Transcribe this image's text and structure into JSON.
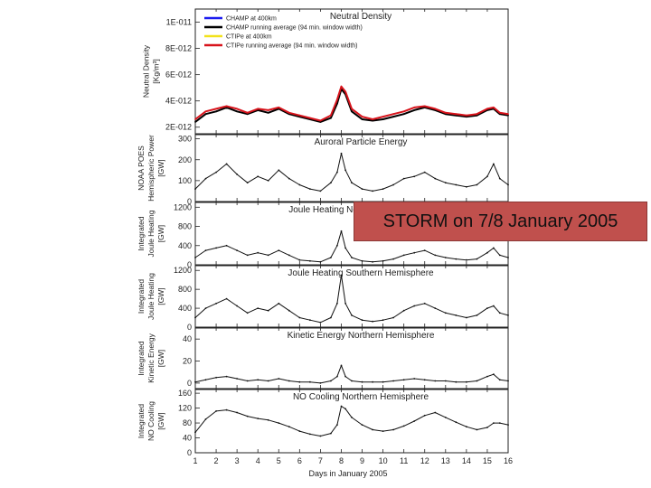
{
  "chart_data": {
    "type": "line",
    "xlabel": "Days in January 2005",
    "x_ticks": [
      "1",
      "2",
      "3",
      "4",
      "5",
      "6",
      "7",
      "8",
      "9",
      "10",
      "11",
      "12",
      "13",
      "14",
      "15",
      "16"
    ],
    "xlim": [
      1,
      16
    ],
    "panels": [
      {
        "id": "density",
        "title": "Neutral Density",
        "ylabel_lines": [
          "Neutral Density",
          "[Kg/m³]"
        ],
        "ylim": [
          1.5e-12,
          1.1e-11
        ],
        "y_tick_values": [
          2e-12,
          4e-12,
          6e-12,
          8e-12,
          1e-11
        ],
        "y_tick_labels": [
          "2E-012",
          "4E-012",
          "6E-012",
          "8E-012",
          "1E-011"
        ],
        "legend": [
          {
            "name": "CHAMP at 400km",
            "color": "#1c1cf0"
          },
          {
            "name": "CHAMP running average (94 min. window width)",
            "color": "#000000"
          },
          {
            "name": "CTIPe at 400km",
            "color": "#f2e21c"
          },
          {
            "name": "CTIPe running average (94 min. window width)",
            "color": "#d8141c"
          }
        ],
        "series": [
          {
            "name": "CHAMP running average (94 min. window width)",
            "x": [
              1,
              1.5,
              2,
              2.5,
              3,
              3.5,
              4,
              4.5,
              5,
              5.5,
              6,
              6.5,
              7,
              7.5,
              7.8,
              8,
              8.2,
              8.5,
              9,
              9.5,
              10,
              10.5,
              11,
              11.5,
              12,
              12.5,
              13,
              13.5,
              14,
              14.5,
              15,
              15.3,
              15.6,
              16
            ],
            "values": [
              2.4e-12,
              3e-12,
              3.2e-12,
              3.5e-12,
              3.2e-12,
              3e-12,
              3.3e-12,
              3.1e-12,
              3.4e-12,
              3e-12,
              2.8e-12,
              2.6e-12,
              2.4e-12,
              2.7e-12,
              3.8e-12,
              4.9e-12,
              4.5e-12,
              3.2e-12,
              2.6e-12,
              2.5e-12,
              2.6e-12,
              2.8e-12,
              3e-12,
              3.3e-12,
              3.5e-12,
              3.3e-12,
              3e-12,
              2.9e-12,
              2.8e-12,
              2.9e-12,
              3.3e-12,
              3.4e-12,
              3e-12,
              2.9e-12
            ]
          },
          {
            "name": "CTIPe running average (94 min. window width)",
            "x": [
              1,
              1.5,
              2,
              2.5,
              3,
              3.5,
              4,
              4.5,
              5,
              5.5,
              6,
              6.5,
              7,
              7.5,
              7.8,
              8,
              8.2,
              8.5,
              9,
              9.5,
              10,
              10.5,
              11,
              11.5,
              12,
              12.5,
              13,
              13.5,
              14,
              14.5,
              15,
              15.3,
              15.6,
              16
            ],
            "values": [
              2.6e-12,
              3.2e-12,
              3.4e-12,
              3.6e-12,
              3.4e-12,
              3.1e-12,
              3.4e-12,
              3.3e-12,
              3.5e-12,
              3.1e-12,
              2.9e-12,
              2.7e-12,
              2.5e-12,
              2.9e-12,
              4.1e-12,
              5.1e-12,
              4.7e-12,
              3.4e-12,
              2.8e-12,
              2.6e-12,
              2.8e-12,
              3e-12,
              3.2e-12,
              3.5e-12,
              3.6e-12,
              3.4e-12,
              3.1e-12,
              3e-12,
              2.9e-12,
              3e-12,
              3.4e-12,
              3.5e-12,
              3.1e-12,
              3e-12
            ]
          }
        ]
      },
      {
        "id": "auroral",
        "title": "Auroral Particle Energy",
        "ylabel_lines": [
          "NOAA POES",
          "Hemispheric Power",
          "[GW]"
        ],
        "ylim": [
          0,
          320
        ],
        "y_tick_values": [
          0,
          100,
          200,
          300
        ],
        "y_tick_labels": [
          "0",
          "100",
          "200",
          "300"
        ],
        "series": [
          {
            "name": "Auroral Particle Energy",
            "x": [
              1,
              1.5,
              2,
              2.5,
              3,
              3.5,
              4,
              4.5,
              5,
              5.5,
              6,
              6.5,
              7,
              7.5,
              7.8,
              8,
              8.2,
              8.5,
              9,
              9.5,
              10,
              10.5,
              11,
              11.5,
              12,
              12.5,
              13,
              13.5,
              14,
              14.5,
              15,
              15.3,
              15.6,
              16
            ],
            "values": [
              60,
              110,
              140,
              180,
              130,
              90,
              120,
              100,
              150,
              110,
              80,
              60,
              50,
              90,
              140,
              230,
              150,
              90,
              60,
              50,
              60,
              80,
              110,
              120,
              140,
              110,
              90,
              80,
              70,
              80,
              120,
              180,
              110,
              80
            ]
          }
        ]
      },
      {
        "id": "joule_north",
        "title": "Joule Heating Northern Hemisphere",
        "ylabel_lines": [
          "Integrated",
          "Joule Heating",
          "[GW]"
        ],
        "ylim": [
          0,
          1300
        ],
        "y_tick_values": [
          0,
          400,
          800,
          1200
        ],
        "y_tick_labels": [
          "0",
          "400",
          "800",
          "1200"
        ],
        "series": [
          {
            "name": "Joule Heating Northern Hemisphere",
            "x": [
              1,
              1.5,
              2,
              2.5,
              3,
              3.5,
              4,
              4.5,
              5,
              5.5,
              6,
              6.5,
              7,
              7.5,
              7.8,
              8,
              8.2,
              8.5,
              9,
              9.5,
              10,
              10.5,
              11,
              11.5,
              12,
              12.5,
              13,
              13.5,
              14,
              14.5,
              15,
              15.3,
              15.6,
              16
            ],
            "values": [
              150,
              300,
              350,
              400,
              300,
              200,
              250,
              200,
              300,
              200,
              100,
              80,
              60,
              150,
              400,
              700,
              350,
              150,
              80,
              60,
              80,
              120,
              200,
              250,
              300,
              200,
              150,
              120,
              100,
              120,
              250,
              350,
              200,
              150
            ]
          }
        ]
      },
      {
        "id": "joule_south",
        "title": "Joule Heating Southern Hemisphere",
        "ylabel_lines": [
          "Integrated",
          "Joule Heating",
          "[GW]"
        ],
        "ylim": [
          0,
          1300
        ],
        "y_tick_values": [
          0,
          400,
          800,
          1200
        ],
        "y_tick_labels": [
          "0",
          "400",
          "800",
          "1200"
        ],
        "series": [
          {
            "name": "Joule Heating Southern Hemisphere",
            "x": [
              1,
              1.5,
              2,
              2.5,
              3,
              3.5,
              4,
              4.5,
              5,
              5.5,
              6,
              6.5,
              7,
              7.5,
              7.8,
              8,
              8.2,
              8.5,
              9,
              9.5,
              10,
              10.5,
              11,
              11.5,
              12,
              12.5,
              13,
              13.5,
              14,
              14.5,
              15,
              15.3,
              15.6,
              16
            ],
            "values": [
              200,
              400,
              500,
              600,
              450,
              300,
              400,
              350,
              500,
              350,
              200,
              150,
              100,
              200,
              500,
              1100,
              500,
              250,
              150,
              120,
              150,
              200,
              350,
              450,
              500,
              400,
              300,
              250,
              200,
              250,
              400,
              450,
              300,
              250
            ]
          }
        ]
      },
      {
        "id": "kinetic",
        "title": "Kinetic Energy Northern Hemisphere",
        "ylabel_lines": [
          "Integrated",
          "Kinetic Energy",
          "[GW]"
        ],
        "ylim": [
          -5,
          50
        ],
        "y_tick_values": [
          0,
          20,
          40
        ],
        "y_tick_labels": [
          "0",
          "20",
          "40"
        ],
        "series": [
          {
            "name": "Kinetic Energy Northern Hemisphere",
            "x": [
              1,
              1.5,
              2,
              2.5,
              3,
              3.5,
              4,
              4.5,
              5,
              5.5,
              6,
              6.5,
              7,
              7.5,
              7.8,
              8,
              8.2,
              8.5,
              9,
              9.5,
              10,
              10.5,
              11,
              11.5,
              12,
              12.5,
              13,
              13.5,
              14,
              14.5,
              15,
              15.3,
              15.6,
              16
            ],
            "values": [
              1,
              3,
              5,
              6,
              4,
              2,
              3,
              2,
              4,
              2,
              1,
              1,
              0,
              2,
              6,
              16,
              6,
              2,
              1,
              1,
              1,
              2,
              3,
              4,
              3,
              2,
              2,
              1,
              1,
              2,
              6,
              8,
              3,
              2
            ]
          }
        ]
      },
      {
        "id": "no_cooling",
        "title": "NO Cooling Northern Hemisphere",
        "ylabel_lines": [
          "Integrated",
          "NO Cooling",
          "[GW]"
        ],
        "ylim": [
          0,
          170
        ],
        "y_tick_values": [
          0,
          40,
          80,
          120,
          160
        ],
        "y_tick_labels": [
          "0",
          "40",
          "80",
          "120",
          "160"
        ],
        "series": [
          {
            "name": "NO Cooling Northern Hemisphere",
            "x": [
              1,
              1.5,
              2,
              2.5,
              3,
              3.5,
              4,
              4.5,
              5,
              5.5,
              6,
              6.5,
              7,
              7.5,
              7.8,
              8,
              8.2,
              8.5,
              9,
              9.5,
              10,
              10.5,
              11,
              11.5,
              12,
              12.5,
              13,
              13.5,
              14,
              14.5,
              15,
              15.3,
              15.6,
              16
            ],
            "values": [
              55,
              90,
              112,
              115,
              108,
              98,
              92,
              88,
              80,
              70,
              58,
              50,
              45,
              52,
              75,
              125,
              118,
              95,
              75,
              62,
              58,
              62,
              72,
              85,
              100,
              108,
              95,
              82,
              70,
              62,
              68,
              80,
              80,
              75
            ]
          }
        ]
      }
    ]
  },
  "annotation": {
    "text": "STORM on 7/8 January 2005"
  }
}
